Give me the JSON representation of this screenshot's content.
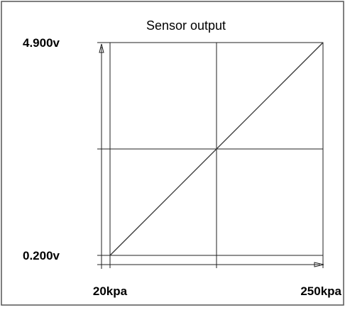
{
  "colors": {
    "frame": "#555555",
    "grid": "#222222",
    "line": "#333333",
    "background": "#ffffff"
  },
  "chart_data": {
    "type": "line",
    "title": "Sensor output",
    "xlabel": "",
    "ylabel": "",
    "x": [
      20,
      250
    ],
    "series": [
      {
        "values": [
          0.2,
          4.9
        ]
      }
    ],
    "xlim": [
      20,
      250
    ],
    "ylim": [
      0.2,
      4.9
    ],
    "x_ticks": [
      {
        "value": 20,
        "label": "20kpa"
      },
      {
        "value": 250,
        "label": "250kpa"
      }
    ],
    "y_ticks": [
      {
        "value": 0.2,
        "label": "0.200v"
      },
      {
        "value": 4.9,
        "label": "4.900v"
      }
    ],
    "grid": true,
    "legend": "none"
  }
}
